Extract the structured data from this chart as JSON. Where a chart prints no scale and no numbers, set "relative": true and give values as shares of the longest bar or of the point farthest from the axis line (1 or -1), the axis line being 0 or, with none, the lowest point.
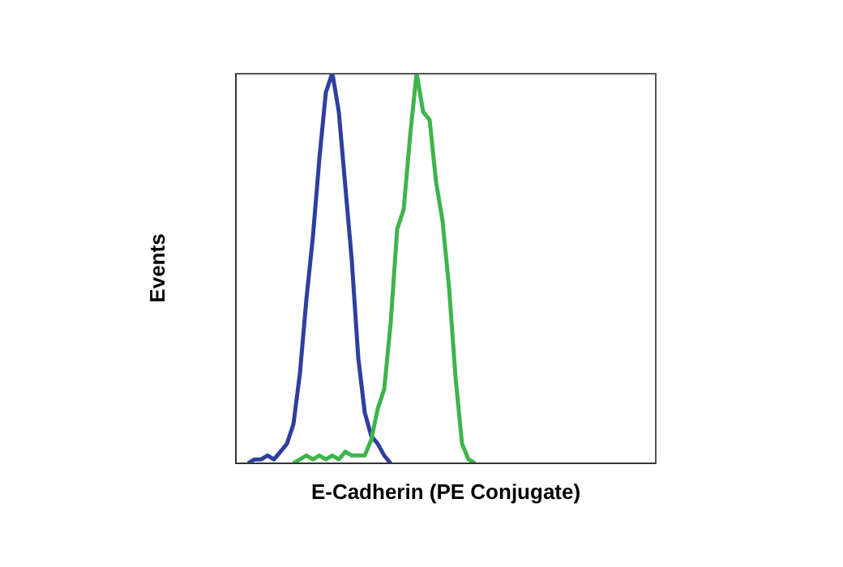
{
  "chart_data": {
    "type": "line",
    "xlabel": "E-Cadherin (PE Conjugate)",
    "ylabel": "Events",
    "relative": true,
    "categories": [
      null,
      null,
      null,
      null,
      null,
      null,
      null,
      null,
      null,
      null,
      null,
      null,
      null,
      null,
      null,
      null,
      null,
      null,
      null,
      null,
      null,
      null,
      null,
      null,
      null,
      null,
      null,
      null,
      null,
      null,
      null,
      null,
      null,
      null,
      null,
      null,
      null,
      null,
      null,
      null,
      null,
      null,
      null,
      null,
      null,
      null,
      null,
      null,
      null,
      null,
      null,
      null,
      null,
      null,
      null,
      null,
      null,
      null,
      null,
      null,
      null,
      null,
      null,
      null,
      null,
      null
    ],
    "series": [
      {
        "color": "#2e3f9e",
        "values": [
          null,
          null,
          0,
          0.01,
          0.01,
          0.02,
          0.01,
          0.03,
          0.05,
          0.1,
          0.23,
          0.42,
          0.58,
          0.78,
          0.95,
          1,
          0.9,
          0.71,
          0.52,
          0.27,
          0.13,
          0.07,
          0.05,
          0.02,
          0,
          null,
          null,
          null,
          null,
          null,
          null,
          null,
          null,
          null,
          null,
          null,
          null,
          null,
          null,
          null,
          null,
          null,
          null,
          null,
          null,
          null,
          null,
          null,
          null,
          null,
          null,
          null,
          null,
          null,
          null,
          null,
          null,
          null,
          null,
          null,
          null,
          null,
          null,
          null,
          null,
          null
        ]
      },
      {
        "color": "#3cb54a",
        "values": [
          null,
          null,
          null,
          null,
          null,
          null,
          null,
          null,
          null,
          0,
          0.01,
          0.02,
          0.01,
          0.02,
          0.01,
          0.02,
          0.01,
          0.03,
          0.02,
          0.02,
          0.02,
          0.06,
          0.14,
          0.19,
          0.36,
          0.6,
          0.65,
          0.84,
          1,
          0.9,
          0.88,
          0.72,
          0.62,
          0.45,
          0.22,
          0.05,
          0.01,
          0,
          null,
          null,
          null,
          null,
          null,
          null,
          null,
          null,
          null,
          null,
          null,
          null,
          null,
          null,
          null,
          null,
          null,
          null,
          null,
          null,
          null,
          null,
          null,
          null,
          null,
          null,
          null,
          null
        ]
      }
    ]
  }
}
